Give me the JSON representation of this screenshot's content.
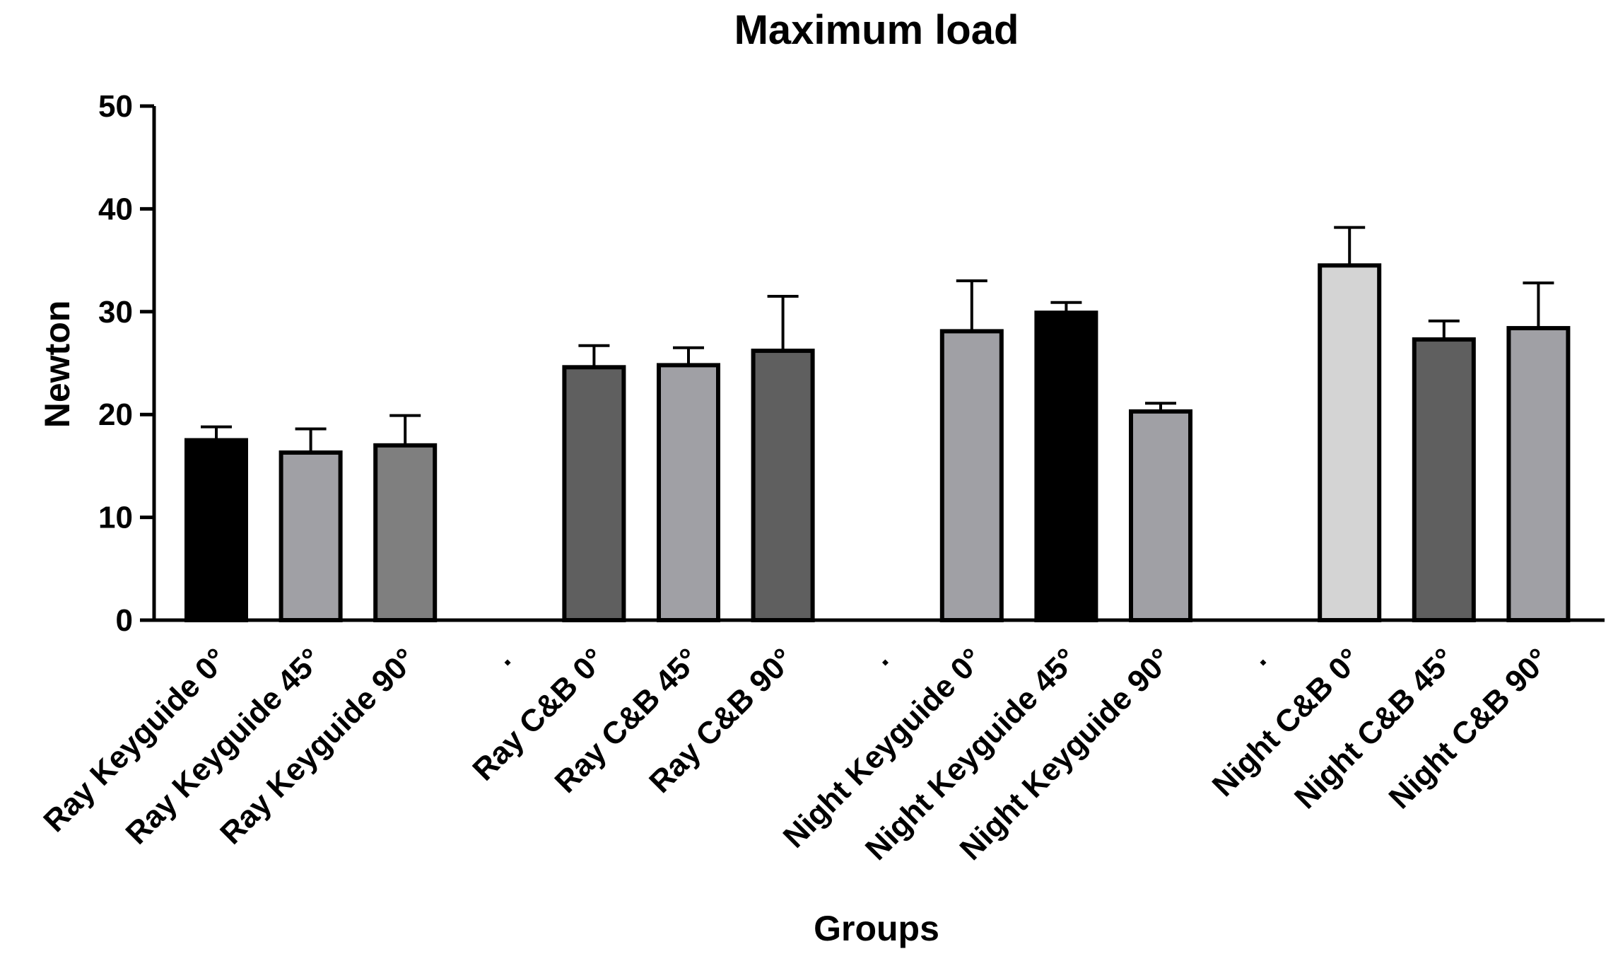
{
  "chart_data": {
    "type": "bar",
    "title": "Maximum load",
    "xlabel": "Groups",
    "ylabel": "Newton",
    "ylim": [
      0,
      50
    ],
    "yticks": [
      0,
      10,
      20,
      30,
      40,
      50
    ],
    "grid": false,
    "categories": [
      "Ray Keyguide 0°",
      "Ray Keyguide 45°",
      "Ray Keyguide 90°",
      ".",
      "Ray C&B 0°",
      "Ray C&B 45°",
      "Ray C&B 90°",
      ".",
      "Night Keyguide 0°",
      "Night Keyguide 45°",
      "Night Keyguide 90°",
      ".",
      "Night C&B 0°",
      "Night C&B 45°",
      "Night C&B 90°"
    ],
    "values": [
      17.5,
      16.3,
      17.0,
      null,
      24.6,
      24.8,
      26.2,
      null,
      28.1,
      29.9,
      20.3,
      null,
      34.5,
      27.3,
      28.4
    ],
    "errors": [
      1.3,
      2.3,
      2.9,
      null,
      2.1,
      1.7,
      5.3,
      null,
      4.9,
      1.0,
      0.8,
      null,
      3.7,
      1.8,
      4.4
    ],
    "colors": [
      "#000000",
      "#a0a0a5",
      "#7f7f7f",
      null,
      "#5f5f5f",
      "#a0a0a5",
      "#5f5f5f",
      null,
      "#a0a0a5",
      "#000000",
      "#a0a0a5",
      null,
      "#d4d4d4",
      "#5f5f5f",
      "#a0a0a5"
    ]
  }
}
